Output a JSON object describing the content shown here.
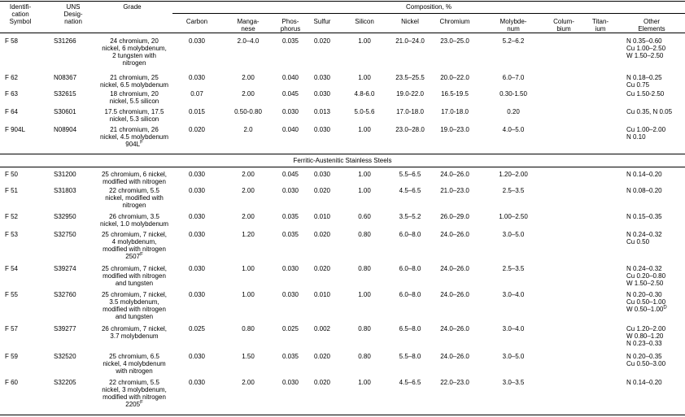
{
  "headers": {
    "id_symbol": [
      "Identifi-",
      "cation",
      "Symbol"
    ],
    "uns": [
      "UNS",
      "Desig-",
      "nation"
    ],
    "grade": "Grade",
    "composition": "Composition, %",
    "carbon": [
      "Carbon"
    ],
    "manganese": [
      "Manga-",
      "nese"
    ],
    "phosphorus": [
      "Phos-",
      "phorus"
    ],
    "sulfur": [
      "Sulfur"
    ],
    "silicon": [
      "Silicon"
    ],
    "nickel": [
      "Nickel"
    ],
    "chromium": [
      "Chromium"
    ],
    "molybdenum": [
      "Molybde-",
      "num"
    ],
    "columbium": [
      "Colum-",
      "bium"
    ],
    "titanium": [
      "Titan-",
      "ium"
    ],
    "other": [
      "Other",
      "Elements"
    ]
  },
  "section_title": "Ferritic-Austenitic Stainless Steels",
  "rows_top": [
    {
      "id": "F 58",
      "uns": "S31266",
      "grade": [
        "24 chromium, 20",
        "nickel, 6 molybdenum,",
        "2 tungsten with",
        "nitrogen"
      ],
      "grade_sup": "",
      "c": "0.030",
      "mn": "2.0–4.0",
      "p": "0.035",
      "s": "0.020",
      "si": "1.00",
      "ni": "21.0–24.0",
      "cr": "23.0–25.0",
      "mo": "5.2–6.2",
      "cb": "",
      "ti": "",
      "other": [
        "N 0.35–0.60",
        "Cu 1.00–2.50",
        "W 1.50–2.50"
      ]
    },
    {
      "id": "F 62",
      "uns": "N08367",
      "grade": [
        "21 chromium, 25",
        "nickel, 6.5 molybdenum"
      ],
      "grade_sup": "",
      "c": "0.030",
      "mn": "2.00",
      "p": "0.040",
      "s": "0.030",
      "si": "1.00",
      "ni": "23.5–25.5",
      "cr": "20.0–22.0",
      "mo": "6.0–7.0",
      "cb": "",
      "ti": "",
      "other": [
        "N 0.18–0.25",
        "Cu 0.75"
      ]
    },
    {
      "id": "F 63",
      "uns": "S32615",
      "grade": [
        "18 chromium, 20",
        "nickel, 5.5 silicon"
      ],
      "grade_sup": "",
      "c": "0.07",
      "mn": "2.00",
      "p": "0.045",
      "s": "0.030",
      "si": "4.8-6.0",
      "ni": "19.0-22.0",
      "cr": "16.5-19.5",
      "mo": "0.30-1.50",
      "cb": "",
      "ti": "",
      "other": [
        "Cu 1.50-2.50"
      ]
    },
    {
      "id": "F 64",
      "uns": "S30601",
      "grade": [
        "17.5 chromium, 17.5",
        "nickel, 5.3 silicon"
      ],
      "grade_sup": "",
      "c": "0.015",
      "mn": "0.50-0.80",
      "p": "0.030",
      "s": "0.013",
      "si": "5.0-5.6",
      "ni": "17.0-18.0",
      "cr": "17.0-18.0",
      "mo": "0.20",
      "cb": "",
      "ti": "",
      "other": [
        "Cu 0.35, N 0.05"
      ]
    },
    {
      "id": "F 904L",
      "uns": "N08904",
      "grade": [
        "21 chromium, 26",
        "nickel, 4.5 molybdenum",
        "904L"
      ],
      "grade_sup": "F",
      "c": "0.020",
      "mn": "2.0",
      "p": "0.040",
      "s": "0.030",
      "si": "1.00",
      "ni": "23.0–28.0",
      "cr": "19.0–23.0",
      "mo": "4.0–5.0",
      "cb": "",
      "ti": "",
      "other": [
        "Cu 1.00–2.00",
        "N 0.10"
      ]
    }
  ],
  "rows_bottom": [
    {
      "id": "F 50",
      "uns": "S31200",
      "grade": [
        "25 chromium, 6 nickel,",
        "modified with nitrogen"
      ],
      "grade_sup": "",
      "c": "0.030",
      "mn": "2.00",
      "p": "0.045",
      "s": "0.030",
      "si": "1.00",
      "ni": "5.5–6.5",
      "cr": "24.0–26.0",
      "mo": "1.20–2.00",
      "cb": "",
      "ti": "",
      "other": [
        "N 0.14–0.20"
      ]
    },
    {
      "id": "F 51",
      "uns": "S31803",
      "grade": [
        "22 chromium, 5.5",
        "nickel, modified with",
        "nitrogen"
      ],
      "grade_sup": "",
      "c": "0.030",
      "mn": "2.00",
      "p": "0.030",
      "s": "0.020",
      "si": "1.00",
      "ni": "4.5–6.5",
      "cr": "21.0–23.0",
      "mo": "2.5–3.5",
      "cb": "",
      "ti": "",
      "other": [
        "N 0.08–0.20"
      ]
    },
    {
      "id": "F 52",
      "uns": "S32950",
      "grade": [
        "26 chromium, 3.5",
        "nickel, 1.0 molybdenum"
      ],
      "grade_sup": "",
      "c": "0.030",
      "mn": "2.00",
      "p": "0.035",
      "s": "0.010",
      "si": "0.60",
      "ni": "3.5–5.2",
      "cr": "26.0–29.0",
      "mo": "1.00–2.50",
      "cb": "",
      "ti": "",
      "other": [
        "N 0.15–0.35"
      ]
    },
    {
      "id": "F 53",
      "uns": "S32750",
      "grade": [
        "25 chromium, 7 nickel,",
        "4 molybdenum,",
        "modified with nitrogen",
        "2507"
      ],
      "grade_sup": "F",
      "c": "0.030",
      "mn": "1.20",
      "p": "0.035",
      "s": "0.020",
      "si": "0.80",
      "ni": "6.0–8.0",
      "cr": "24.0–26.0",
      "mo": "3.0–5.0",
      "cb": "",
      "ti": "",
      "other": [
        "N 0.24–0.32",
        "Cu 0.50"
      ]
    },
    {
      "id": "F 54",
      "uns": "S39274",
      "grade": [
        "25 chromium, 7 nickel,",
        "modified with nitrogen",
        "and tungsten"
      ],
      "grade_sup": "",
      "c": "0.030",
      "mn": "1.00",
      "p": "0.030",
      "s": "0.020",
      "si": "0.80",
      "ni": "6.0–8.0",
      "cr": "24.0–26.0",
      "mo": "2.5–3.5",
      "cb": "",
      "ti": "",
      "other": [
        "N 0.24–0.32",
        "Cu 0.20–0.80",
        "W 1.50–2.50"
      ]
    },
    {
      "id": "F 55",
      "uns": "S32760",
      "grade": [
        "25 chromium, 7 nickel,",
        "3.5 molybdenum,",
        "modified with nitrogen",
        "and tungsten"
      ],
      "grade_sup": "",
      "c": "0.030",
      "mn": "1.00",
      "p": "0.030",
      "s": "0.010",
      "si": "1.00",
      "ni": "6.0–8.0",
      "cr": "24.0–26.0",
      "mo": "3.0–4.0",
      "cb": "",
      "ti": "",
      "other": [
        "N 0.20–0.30",
        "Cu 0.50–1.00",
        "W 0.50–1.00"
      ],
      "other_sup": "D"
    },
    {
      "id": "F 57",
      "uns": "S39277",
      "grade": [
        "26 chromium, 7 nickel,",
        "3.7 molybdenum"
      ],
      "grade_sup": "",
      "c": "0.025",
      "mn": "0.80",
      "p": "0.025",
      "s": "0.002",
      "si": "0.80",
      "ni": "6.5–8.0",
      "cr": "24.0–26.0",
      "mo": "3.0–4.0",
      "cb": "",
      "ti": "",
      "other": [
        "Cu 1.20–2.00",
        "W 0.80–1.20",
        "N 0.23–0.33"
      ]
    },
    {
      "id": "F 59",
      "uns": "S32520",
      "grade": [
        "25 chromium, 6.5",
        "nickel, 4 molybdenum",
        "with nitrogen"
      ],
      "grade_sup": "",
      "c": "0.030",
      "mn": "1.50",
      "p": "0.035",
      "s": "0.020",
      "si": "0.80",
      "ni": "5.5–8.0",
      "cr": "24.0–26.0",
      "mo": "3.0–5.0",
      "cb": "",
      "ti": "",
      "other": [
        "N 0.20–0.35",
        "Cu 0.50–3.00"
      ]
    },
    {
      "id": "F 60",
      "uns": "S32205",
      "grade": [
        "22 chromium, 5.5",
        "nickel, 3 molybdenum,",
        "modified with nitrogen",
        "2205"
      ],
      "grade_sup": "F",
      "c": "0.030",
      "mn": "2.00",
      "p": "0.030",
      "s": "0.020",
      "si": "1.00",
      "ni": "4.5–6.5",
      "cr": "22.0–23.0",
      "mo": "3.0–3.5",
      "cb": "",
      "ti": "",
      "other": [
        "N 0.14–0.20"
      ]
    }
  ]
}
